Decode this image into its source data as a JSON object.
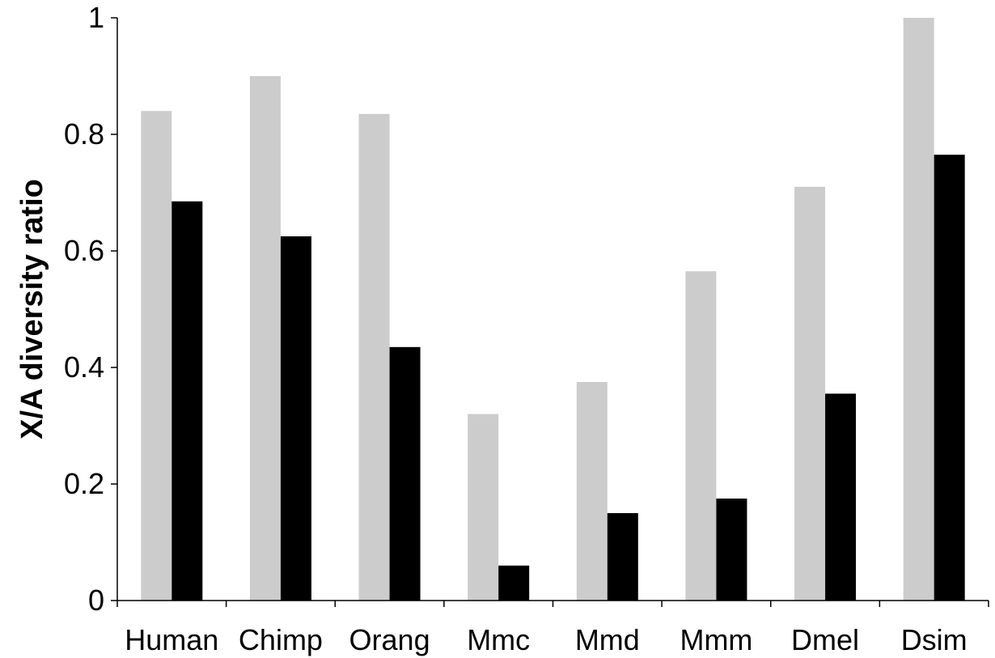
{
  "chart_data": {
    "type": "bar",
    "title": "",
    "xlabel": "",
    "ylabel": "X/A diversity ratio",
    "ylim": [
      0,
      1
    ],
    "yticks": [
      "0",
      "0.2",
      "0.4",
      "0.6",
      "0.8",
      "1"
    ],
    "grid": false,
    "legend": "none",
    "categories": [
      "Human",
      "Chimp",
      "Orang",
      "Mmc",
      "Mmd",
      "Mmm",
      "Dmel",
      "Dsim"
    ],
    "series": [
      {
        "color": "#cccccc",
        "values": [
          0.84,
          0.9,
          0.835,
          0.32,
          0.375,
          0.565,
          0.71,
          1.0
        ]
      },
      {
        "color": "#000000",
        "values": [
          0.685,
          0.625,
          0.435,
          0.06,
          0.15,
          0.175,
          0.355,
          0.765
        ]
      }
    ]
  }
}
